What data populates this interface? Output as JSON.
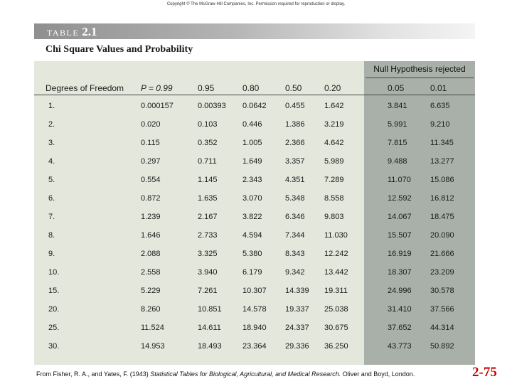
{
  "copyright": "Copyright © The McGraw-Hill Companies, Inc. Permission required for reproduction or display.",
  "table_label": {
    "word": "TABLE",
    "number": "2.1"
  },
  "title": "Chi Square Values and Probability",
  "null_hypothesis_header": "Null Hypothesis rejected",
  "columns": [
    "Degrees of Freedom",
    "P = 0.99",
    "0.95",
    "0.80",
    "0.50",
    "0.20",
    "0.05",
    "0.01"
  ],
  "rows": [
    [
      "1.",
      "0.000157",
      "0.00393",
      "0.0642",
      "0.455",
      "1.642",
      "3.841",
      "6.635"
    ],
    [
      "2.",
      "0.020",
      "0.103",
      "0.446",
      "1.386",
      "3.219",
      "5.991",
      "9.210"
    ],
    [
      "3.",
      "0.115",
      "0.352",
      "1.005",
      "2.366",
      "4.642",
      "7.815",
      "11.345"
    ],
    [
      "4.",
      "0.297",
      "0.711",
      "1.649",
      "3.357",
      "5.989",
      "9.488",
      "13.277"
    ],
    [
      "5.",
      "0.554",
      "1.145",
      "2.343",
      "4.351",
      "7.289",
      "11.070",
      "15.086"
    ],
    [
      "6.",
      "0.872",
      "1.635",
      "3.070",
      "5.348",
      "8.558",
      "12.592",
      "16.812"
    ],
    [
      "7.",
      "1.239",
      "2.167",
      "3.822",
      "6.346",
      "9.803",
      "14.067",
      "18.475"
    ],
    [
      "8.",
      "1.646",
      "2.733",
      "4.594",
      "7.344",
      "11.030",
      "15.507",
      "20.090"
    ],
    [
      "9.",
      "2.088",
      "3.325",
      "5.380",
      "8.343",
      "12.242",
      "16.919",
      "21.666"
    ],
    [
      "10.",
      "2.558",
      "3.940",
      "6.179",
      "9.342",
      "13.442",
      "18.307",
      "23.209"
    ],
    [
      "15.",
      "5.229",
      "7.261",
      "10.307",
      "14.339",
      "19.311",
      "24.996",
      "30.578"
    ],
    [
      "20.",
      "8.260",
      "10.851",
      "14.578",
      "19.337",
      "25.038",
      "31.410",
      "37.566"
    ],
    [
      "25.",
      "11.524",
      "14.611",
      "18.940",
      "24.337",
      "30.675",
      "37.652",
      "44.314"
    ],
    [
      "30.",
      "14.953",
      "18.493",
      "23.364",
      "29.336",
      "36.250",
      "43.773",
      "50.892"
    ]
  ],
  "footer": {
    "prefix": "From Fisher, R. A., and Yates, F. (1943) ",
    "book": "Statistical Tables for Biological, Agricultural, and Medical Research.",
    "suffix": " Oliver and Boyd, London."
  },
  "slide_number": "2-75"
}
